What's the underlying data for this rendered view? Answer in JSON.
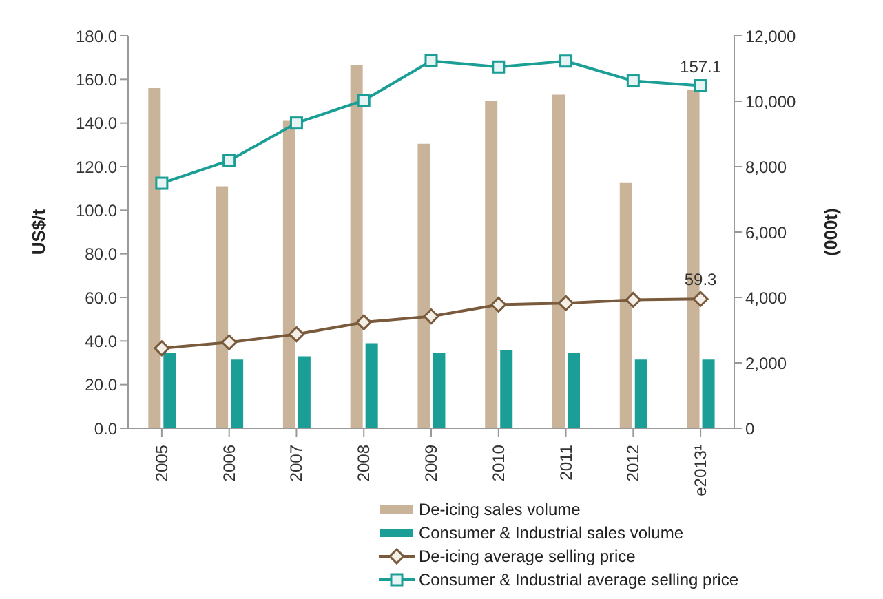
{
  "chart_data": {
    "type": "bar",
    "ylabel": "US$/t",
    "y2label": "(000t)",
    "categories": [
      "2005",
      "2006",
      "2007",
      "2008",
      "2009",
      "2010",
      "2011",
      "2012",
      "e2013¹"
    ],
    "series": [
      {
        "name": "De-icing sales volume",
        "color": "#c9b49a",
        "axis": "y2",
        "values": [
          10400,
          7400,
          9400,
          11100,
          8700,
          10000,
          10200,
          7500,
          10350
        ]
      },
      {
        "name": "Consumer & Industrial sales volume",
        "color": "#1a9e96",
        "axis": "y2",
        "values": [
          2300,
          2100,
          2200,
          2600,
          2300,
          2400,
          2300,
          2100,
          2100
        ]
      },
      {
        "type": "line",
        "name": "De-icing average selling price",
        "color": "#7a5a3c",
        "marker": "diamond",
        "values": [
          36.7,
          39.4,
          43.1,
          48.6,
          51.3,
          56.7,
          57.4,
          58.9,
          59.3
        ],
        "value_labels": [
          null,
          null,
          null,
          null,
          null,
          null,
          null,
          null,
          "59.3"
        ]
      },
      {
        "type": "line",
        "name": "Consumer & Industrial average selling price",
        "color": "#1a9e96",
        "marker": "square",
        "values": [
          112.4,
          122.8,
          140.0,
          150.4,
          168.5,
          165.7,
          168.4,
          159.3,
          157.1
        ],
        "value_labels": [
          null,
          null,
          null,
          null,
          null,
          null,
          null,
          null,
          "157.1"
        ]
      }
    ],
    "ylim": [
      0,
      180
    ],
    "yticks": [
      {
        "value": 0,
        "label": "0.0"
      },
      {
        "value": 20,
        "label": "20.0"
      },
      {
        "value": 40,
        "label": "40.0"
      },
      {
        "value": 60,
        "label": "60.0"
      },
      {
        "value": 80,
        "label": "80.0"
      },
      {
        "value": 100,
        "label": "100.0"
      },
      {
        "value": 120,
        "label": "120.0"
      },
      {
        "value": 140,
        "label": "140.0"
      },
      {
        "value": 160,
        "label": "160.0"
      },
      {
        "value": 180,
        "label": "180.0"
      }
    ],
    "y2lim": [
      0,
      12000
    ],
    "y2ticks": [
      0,
      {
        "value": 2000,
        "label": "2,000"
      },
      {
        "value": 4000,
        "label": "4,000"
      },
      {
        "value": 6000,
        "label": "6,000"
      },
      {
        "value": 8000,
        "label": "8,000"
      },
      {
        "value": 10000,
        "label": "10,000"
      },
      {
        "value": 12000,
        "label": "12,000"
      }
    ],
    "grid": false,
    "legend": "bottom",
    "line_style": "solid"
  }
}
